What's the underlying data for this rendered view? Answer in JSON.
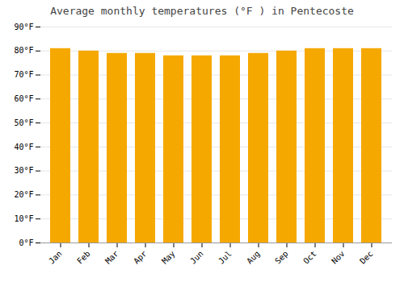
{
  "chart_data": {
    "type": "bar",
    "title": "Average monthly temperatures (°F ) in Pentecoste",
    "categories": [
      "Jan",
      "Feb",
      "Mar",
      "Apr",
      "May",
      "Jun",
      "Jul",
      "Aug",
      "Sep",
      "Oct",
      "Nov",
      "Dec"
    ],
    "values": [
      81,
      80,
      79,
      79,
      78,
      78,
      78,
      79,
      80,
      81,
      81,
      81
    ],
    "color": "#F5A800",
    "ylim": [
      0,
      90
    ],
    "yticks": [
      {
        "value": 0,
        "label": "0°F"
      },
      {
        "value": 10,
        "label": "10°F"
      },
      {
        "value": 20,
        "label": "20°F"
      },
      {
        "value": 30,
        "label": "30°F"
      },
      {
        "value": 40,
        "label": "40°F"
      },
      {
        "value": 50,
        "label": "50°F"
      },
      {
        "value": 60,
        "label": "60°F"
      },
      {
        "value": 70,
        "label": "70°F"
      },
      {
        "value": 80,
        "label": "80°F"
      },
      {
        "value": 90,
        "label": "90°F"
      }
    ],
    "grid": true
  }
}
